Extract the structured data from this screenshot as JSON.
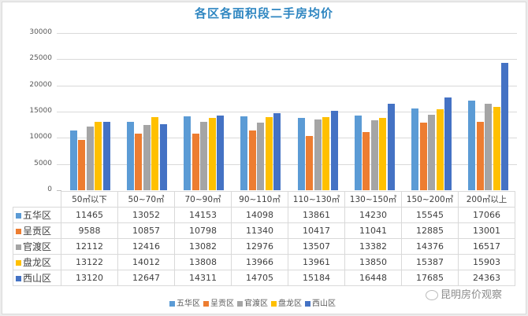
{
  "title": "各区各面积段二手房均价",
  "yaxis": {
    "ticks": [
      "30000",
      "25000",
      "20000",
      "15000",
      "10000",
      "5000",
      "0"
    ]
  },
  "colors": {
    "五华区": "#5b9bd5",
    "呈贡区": "#ed7d31",
    "官渡区": "#a5a5a5",
    "盘龙区": "#ffc000",
    "西山区": "#4472c4"
  },
  "table": {
    "headers": [
      "50㎡以下",
      "50~70㎡",
      "70~90㎡",
      "90~110㎡",
      "110~130㎡",
      "130~150㎡",
      "150~200㎡",
      "200㎡以上"
    ],
    "rows": [
      {
        "label": "五华区",
        "color": "#5b9bd5",
        "values": [
          "11465",
          "13052",
          "14153",
          "14098",
          "13861",
          "14230",
          "15545",
          "17066"
        ]
      },
      {
        "label": "呈贡区",
        "color": "#ed7d31",
        "values": [
          "9588",
          "10857",
          "10798",
          "11340",
          "10417",
          "11041",
          "12885",
          "13001"
        ]
      },
      {
        "label": "官渡区",
        "color": "#a5a5a5",
        "values": [
          "12112",
          "12416",
          "13082",
          "12976",
          "13507",
          "13382",
          "14376",
          "16517"
        ]
      },
      {
        "label": "盘龙区",
        "color": "#ffc000",
        "values": [
          "13122",
          "14012",
          "13808",
          "13966",
          "13961",
          "13850",
          "15387",
          "15903"
        ]
      },
      {
        "label": "西山区",
        "color": "#4472c4",
        "values": [
          "13120",
          "12647",
          "14311",
          "14705",
          "15184",
          "16448",
          "17685",
          "24363"
        ]
      }
    ]
  },
  "legend": [
    "五华区",
    "呈贡区",
    "官渡区",
    "盘龙区",
    "西山区"
  ],
  "watermark": "昆明房价观察",
  "chart_data": {
    "type": "bar",
    "title": "各区各面积段二手房均价",
    "xlabel": "",
    "ylabel": "",
    "ylim": [
      0,
      30000
    ],
    "yticks": [
      0,
      5000,
      10000,
      15000,
      20000,
      25000,
      30000
    ],
    "grid": true,
    "legend_position": "bottom",
    "categories": [
      "50㎡以下",
      "50~70㎡",
      "70~90㎡",
      "90~110㎡",
      "110~130㎡",
      "130~150㎡",
      "150~200㎡",
      "200㎡以上"
    ],
    "series": [
      {
        "name": "五华区",
        "color": "#5b9bd5",
        "values": [
          11465,
          13052,
          14153,
          14098,
          13861,
          14230,
          15545,
          17066
        ]
      },
      {
        "name": "呈贡区",
        "color": "#ed7d31",
        "values": [
          9588,
          10857,
          10798,
          11340,
          10417,
          11041,
          12885,
          13001
        ]
      },
      {
        "name": "官渡区",
        "color": "#a5a5a5",
        "values": [
          12112,
          12416,
          13082,
          12976,
          13507,
          13382,
          14376,
          16517
        ]
      },
      {
        "name": "盘龙区",
        "color": "#ffc000",
        "values": [
          13122,
          14012,
          13808,
          13966,
          13961,
          13850,
          15387,
          15903
        ]
      },
      {
        "name": "西山区",
        "color": "#4472c4",
        "values": [
          13120,
          12647,
          14311,
          14705,
          15184,
          16448,
          17685,
          24363
        ]
      }
    ]
  }
}
